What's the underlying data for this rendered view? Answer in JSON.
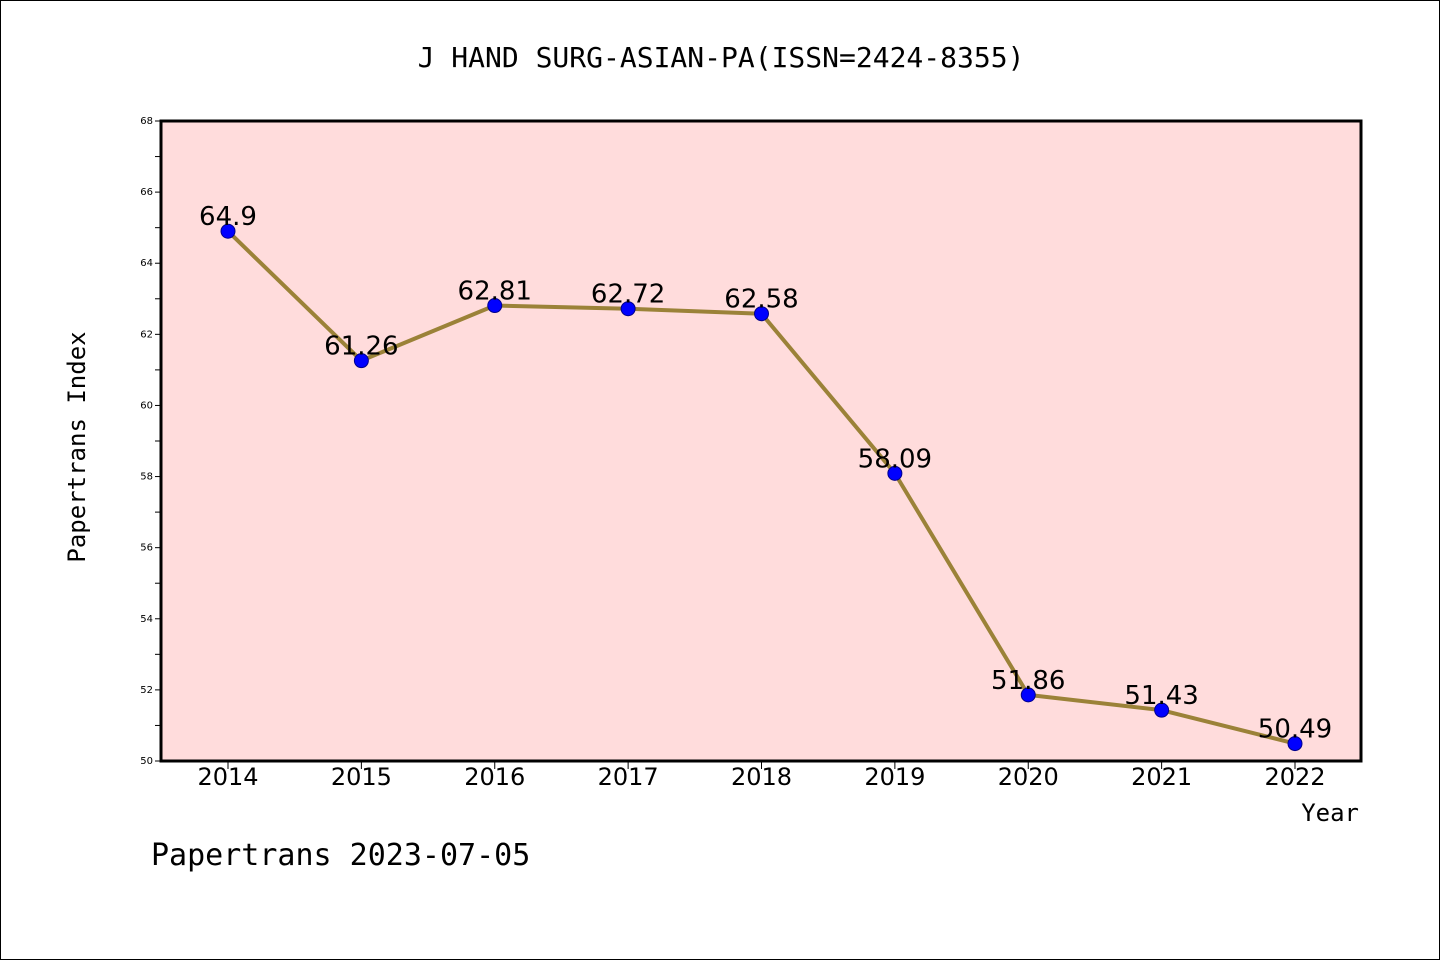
{
  "chart_data": {
    "type": "line",
    "title": "J HAND SURG-ASIAN-PA(ISSN=2424-8355)",
    "xlabel": "Year",
    "ylabel": "Papertrans Index",
    "categories": [
      "2014",
      "2015",
      "2016",
      "2017",
      "2018",
      "2019",
      "2020",
      "2021",
      "2022"
    ],
    "series": [
      {
        "values": [
          64.9,
          61.26,
          62.81,
          62.72,
          62.58,
          58.09,
          51.86,
          51.43,
          50.49
        ],
        "labels": [
          "64.9",
          "61.26",
          "62.81",
          "62.72",
          "62.58",
          "58.09",
          "51.86",
          "51.43",
          "50.49"
        ]
      }
    ],
    "ylim": [
      50,
      68
    ],
    "yticks": [
      "50",
      "52",
      "54",
      "56",
      "58",
      "60",
      "62",
      "64",
      "66",
      "68"
    ],
    "grid": false,
    "colors": {
      "plot_background": "#ffdcdc",
      "line": "#9b8238",
      "marker": "#0000ff",
      "marker_edge": "#00008b",
      "axes": "#000000"
    }
  },
  "footer": "Papertrans 2023-07-05"
}
